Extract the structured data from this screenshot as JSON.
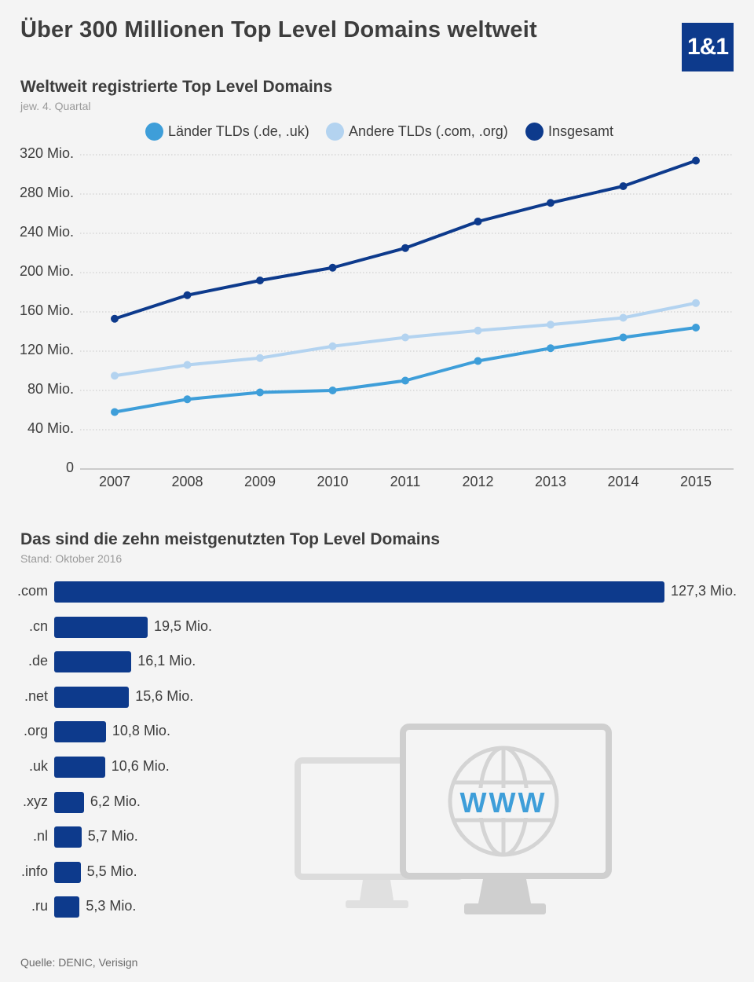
{
  "header": {
    "title": "Über 300 Millionen Top Level Domains weltweit",
    "logo_text": "1&1"
  },
  "line_section": {
    "title": "Weltweit registrierte Top Level Domains",
    "subtitle": "jew. 4. Quartal"
  },
  "bar_section": {
    "title": "Das sind die zehn meistgenutzten Top Level Domains",
    "subtitle": "Stand: Oktober 2016"
  },
  "footer": {
    "source": "Quelle: DENIC, Verisign"
  },
  "illustration": {
    "label": "WWW"
  },
  "colors": {
    "laender": "#3e9ed9",
    "andere": "#b3d3f0",
    "insgesamt": "#0d3a8c",
    "bar": "#0d3a8c",
    "grid": "#c9c9c9"
  },
  "chart_data": [
    {
      "type": "line",
      "title": "Weltweit registrierte Top Level Domains",
      "subtitle": "jew. 4. Quartal",
      "x": [
        "2007",
        "2008",
        "2009",
        "2010",
        "2011",
        "2012",
        "2013",
        "2014",
        "2015"
      ],
      "ylim": [
        0,
        320
      ],
      "yticks": [
        "0",
        "40 Mio.",
        "80 Mio.",
        "120 Mio.",
        "160 Mio.",
        "200 Mio.",
        "240 Mio.",
        "280 Mio.",
        "320 Mio."
      ],
      "ytick_values": [
        0,
        40,
        80,
        120,
        160,
        200,
        240,
        280,
        320
      ],
      "grid": true,
      "legend_position": "top",
      "series": [
        {
          "name": "Länder TLDs (.de, .uk)",
          "color": "#3e9ed9",
          "values": [
            58,
            71,
            78,
            80,
            90,
            110,
            123,
            134,
            144
          ]
        },
        {
          "name": "Andere TLDs (.com, .org)",
          "color": "#b3d3f0",
          "values": [
            95,
            106,
            113,
            125,
            134,
            141,
            147,
            154,
            169
          ]
        },
        {
          "name": "Insgesamt",
          "color": "#0d3a8c",
          "values": [
            153,
            177,
            192,
            205,
            225,
            252,
            271,
            288,
            314
          ]
        }
      ]
    },
    {
      "type": "bar",
      "orientation": "horizontal",
      "title": "Das sind die zehn meistgenutzten Top Level Domains",
      "subtitle": "Stand: Oktober 2016",
      "categories": [
        ".com",
        ".cn",
        ".de",
        ".net",
        ".org",
        ".uk",
        ".xyz",
        ".nl",
        ".info",
        ".ru"
      ],
      "values": [
        127.3,
        19.5,
        16.1,
        15.6,
        10.8,
        10.6,
        6.2,
        5.7,
        5.5,
        5.3
      ],
      "value_labels": [
        "127,3 Mio.",
        "19,5 Mio.",
        "16,1 Mio.",
        "15,6 Mio.",
        "10,8 Mio.",
        "10,6 Mio.",
        "6,2 Mio.",
        "5,7 Mio.",
        "5,5 Mio.",
        "5,3 Mio."
      ]
    }
  ]
}
